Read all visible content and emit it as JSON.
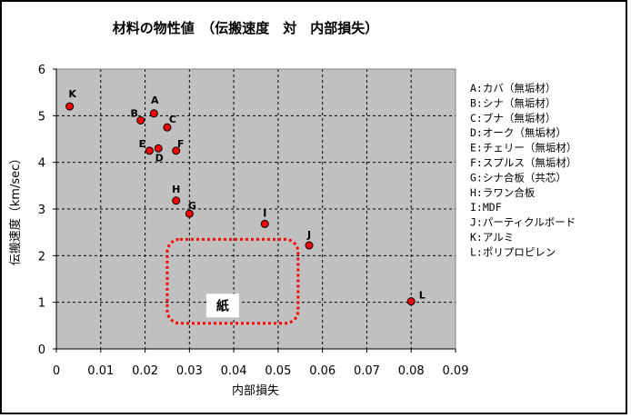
{
  "chart_data": {
    "type": "scatter",
    "title": "材料の物性値　（伝搬速度　対　内部損失）",
    "xlabel": "内部損失",
    "ylabel": "伝搬速度（km/sec）",
    "xlim": [
      0,
      0.09
    ],
    "ylim": [
      0,
      6
    ],
    "x_ticks": [
      0,
      0.01,
      0.02,
      0.03,
      0.04,
      0.05,
      0.06,
      0.07,
      0.08,
      0.09
    ],
    "x_tick_labels": [
      "0",
      "0.01",
      "0.02",
      "0.03",
      "0.04",
      "0.05",
      "0.06",
      "0.07",
      "0.08",
      "0.09"
    ],
    "y_ticks": [
      0,
      1,
      2,
      3,
      4,
      5,
      6
    ],
    "y_tick_labels": [
      "0",
      "1",
      "2",
      "3",
      "4",
      "5",
      "6"
    ],
    "grid": true,
    "background_color": "#c0c0c0",
    "marker_color": "#ff0000",
    "points": [
      {
        "label": "A",
        "x": 0.022,
        "y": 5.05
      },
      {
        "label": "B",
        "x": 0.019,
        "y": 4.9
      },
      {
        "label": "C",
        "x": 0.025,
        "y": 4.75
      },
      {
        "label": "D",
        "x": 0.023,
        "y": 4.3
      },
      {
        "label": "E",
        "x": 0.021,
        "y": 4.25
      },
      {
        "label": "F",
        "x": 0.027,
        "y": 4.25
      },
      {
        "label": "G",
        "x": 0.03,
        "y": 2.9
      },
      {
        "label": "H",
        "x": 0.027,
        "y": 3.18
      },
      {
        "label": "I",
        "x": 0.047,
        "y": 2.68
      },
      {
        "label": "J",
        "x": 0.057,
        "y": 2.22
      },
      {
        "label": "K",
        "x": 0.003,
        "y": 5.2
      },
      {
        "label": "L",
        "x": 0.08,
        "y": 1.02
      }
    ],
    "legend_position": "right",
    "legend": [
      "A:カバ（無垢材）",
      "B:シナ（無垢材）",
      "C:ブナ（無垢材）",
      "D:オーク（無垢材）",
      "E:チェリー（無垢材）",
      "F:スプルス（無垢材）",
      "G:シナ合板（共芯）",
      "H:ラワン合板",
      "I:MDF",
      "J:パーティクルボード",
      "K:アルミ",
      "L:ポリプロピレン"
    ],
    "annotation": {
      "text": "紙",
      "x_range": [
        0.025,
        0.0545
      ],
      "y_range": [
        0.55,
        2.35
      ],
      "border_color": "#ff0000"
    }
  }
}
